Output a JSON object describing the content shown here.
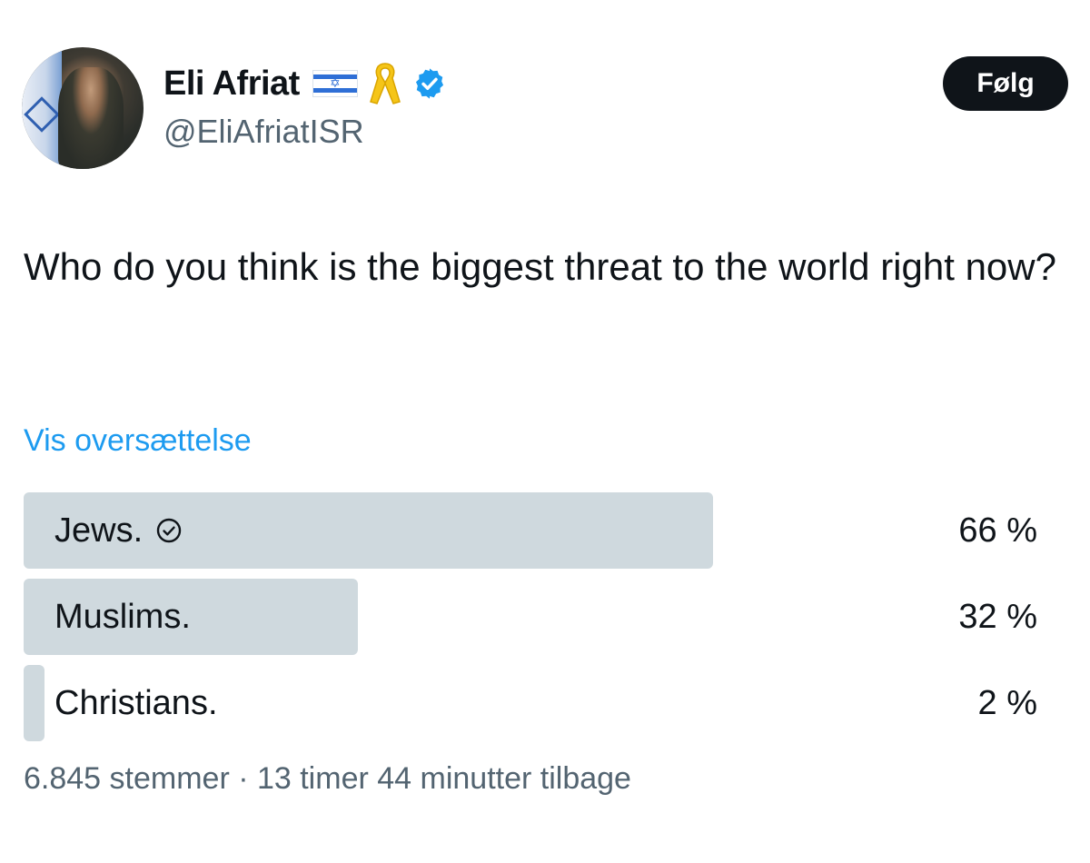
{
  "author": {
    "name": "Eli Afriat",
    "handle": "@EliAfriatISR",
    "flag_icon": "israel-flag-icon",
    "ribbon_icon": "yellow-ribbon-icon",
    "verified_icon": "verified-badge-icon"
  },
  "follow_button": {
    "label": "Følg"
  },
  "tweet": {
    "text": "Who do you think is the biggest threat to the world right now?",
    "translate_link": "Vis oversættelse"
  },
  "poll": {
    "options": [
      {
        "label": "Jews.",
        "percent_text": "66 %",
        "percent": 66,
        "winner": true
      },
      {
        "label": "Muslims.",
        "percent_text": "32 %",
        "percent": 32,
        "winner": false
      },
      {
        "label": "Christians.",
        "percent_text": "2 %",
        "percent": 2,
        "winner": false
      }
    ],
    "meta": "6.845 stemmer · 13 timer 44 minutter tilbage"
  },
  "colors": {
    "accent": "#1d9bf0",
    "bar": "#cfd9de",
    "text": "#0f1419",
    "muted": "#536471",
    "ribbon": "#f5c518"
  }
}
